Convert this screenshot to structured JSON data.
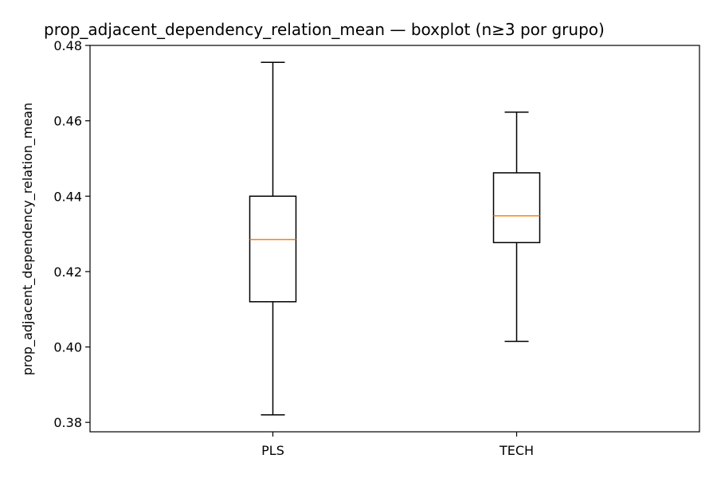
{
  "chart_data": {
    "type": "boxplot",
    "title": "prop_adjacent_dependency_relation_mean — boxplot (n≥3 por grupo)",
    "xlabel": "",
    "ylabel": "prop_adjacent_dependency_relation_mean",
    "ylim": [
      0.3775,
      0.48
    ],
    "yticks": [
      0.38,
      0.4,
      0.42,
      0.44,
      0.46,
      0.48
    ],
    "ytick_labels": [
      "0.38",
      "0.40",
      "0.42",
      "0.44",
      "0.46",
      "0.48"
    ],
    "categories": [
      "PLS",
      "TECH"
    ],
    "boxes": [
      {
        "category": "PLS",
        "whisker_low": 0.382,
        "q1": 0.412,
        "median": 0.4285,
        "q3": 0.44,
        "whisker_high": 0.4755
      },
      {
        "category": "TECH",
        "whisker_low": 0.4015,
        "q1": 0.4277,
        "median": 0.4348,
        "q3": 0.4462,
        "whisker_high": 0.4623
      }
    ],
    "grid": false,
    "colors": {
      "box": "#000000",
      "median": "#ff7f0e",
      "axes": "#000000"
    }
  }
}
